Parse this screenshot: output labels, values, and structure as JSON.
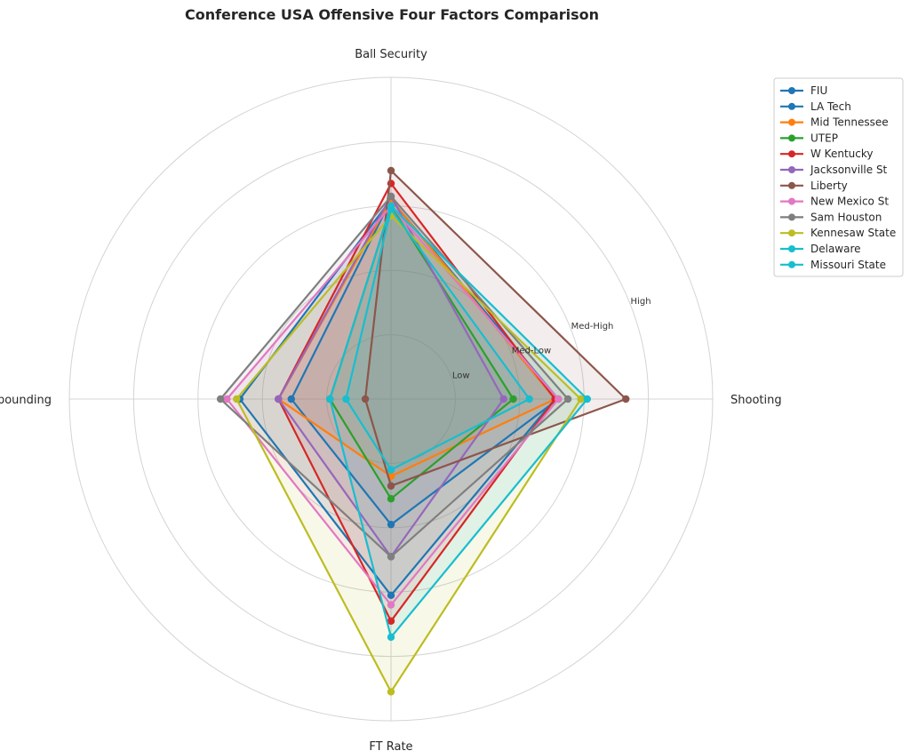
{
  "chart_data": {
    "type": "radar",
    "title": "Conference USA Offensive Four Factors Comparison",
    "axes": [
      "Ball Security",
      "Shooting",
      "FT Rate",
      "Off Rebounding"
    ],
    "ring_labels": [
      "Low",
      "Med-Low",
      "Med-High",
      "High"
    ],
    "rlim": [
      0,
      5
    ],
    "grid": true,
    "legend_position": "upper-right outside",
    "series": [
      {
        "name": "FIU",
        "color": "#1f77b4",
        "values": [
          3.1,
          2.6,
          1.95,
          1.55
        ]
      },
      {
        "name": "LA Tech",
        "color": "#1f77b4",
        "values": [
          3.1,
          2.55,
          3.05,
          2.35
        ]
      },
      {
        "name": "Mid Tennessee",
        "color": "#ff7f0e",
        "values": [
          3.1,
          2.55,
          1.2,
          1.75
        ]
      },
      {
        "name": "UTEP",
        "color": "#2ca02c",
        "values": [
          3.0,
          1.9,
          1.55,
          0.95
        ]
      },
      {
        "name": "W Kentucky",
        "color": "#d62728",
        "values": [
          3.35,
          2.55,
          3.45,
          1.75
        ]
      },
      {
        "name": "Jacksonville St",
        "color": "#9467bd",
        "values": [
          3.15,
          1.75,
          2.45,
          1.75
        ]
      },
      {
        "name": "Liberty",
        "color": "#8c564b",
        "values": [
          3.55,
          3.65,
          1.35,
          0.4
        ]
      },
      {
        "name": "New Mexico St",
        "color": "#e377c2",
        "values": [
          3.0,
          2.6,
          3.2,
          2.55
        ]
      },
      {
        "name": "Sam Houston",
        "color": "#7f7f7f",
        "values": [
          3.15,
          2.75,
          2.45,
          2.65
        ]
      },
      {
        "name": "Kennesaw State",
        "color": "#bcbd22",
        "values": [
          2.85,
          2.95,
          4.55,
          2.4
        ]
      },
      {
        "name": "Delaware",
        "color": "#17becf",
        "values": [
          2.95,
          2.15,
          1.1,
          0.7
        ]
      },
      {
        "name": "Missouri State",
        "color": "#17becf",
        "values": [
          3.0,
          3.05,
          3.7,
          0.95
        ]
      }
    ]
  }
}
